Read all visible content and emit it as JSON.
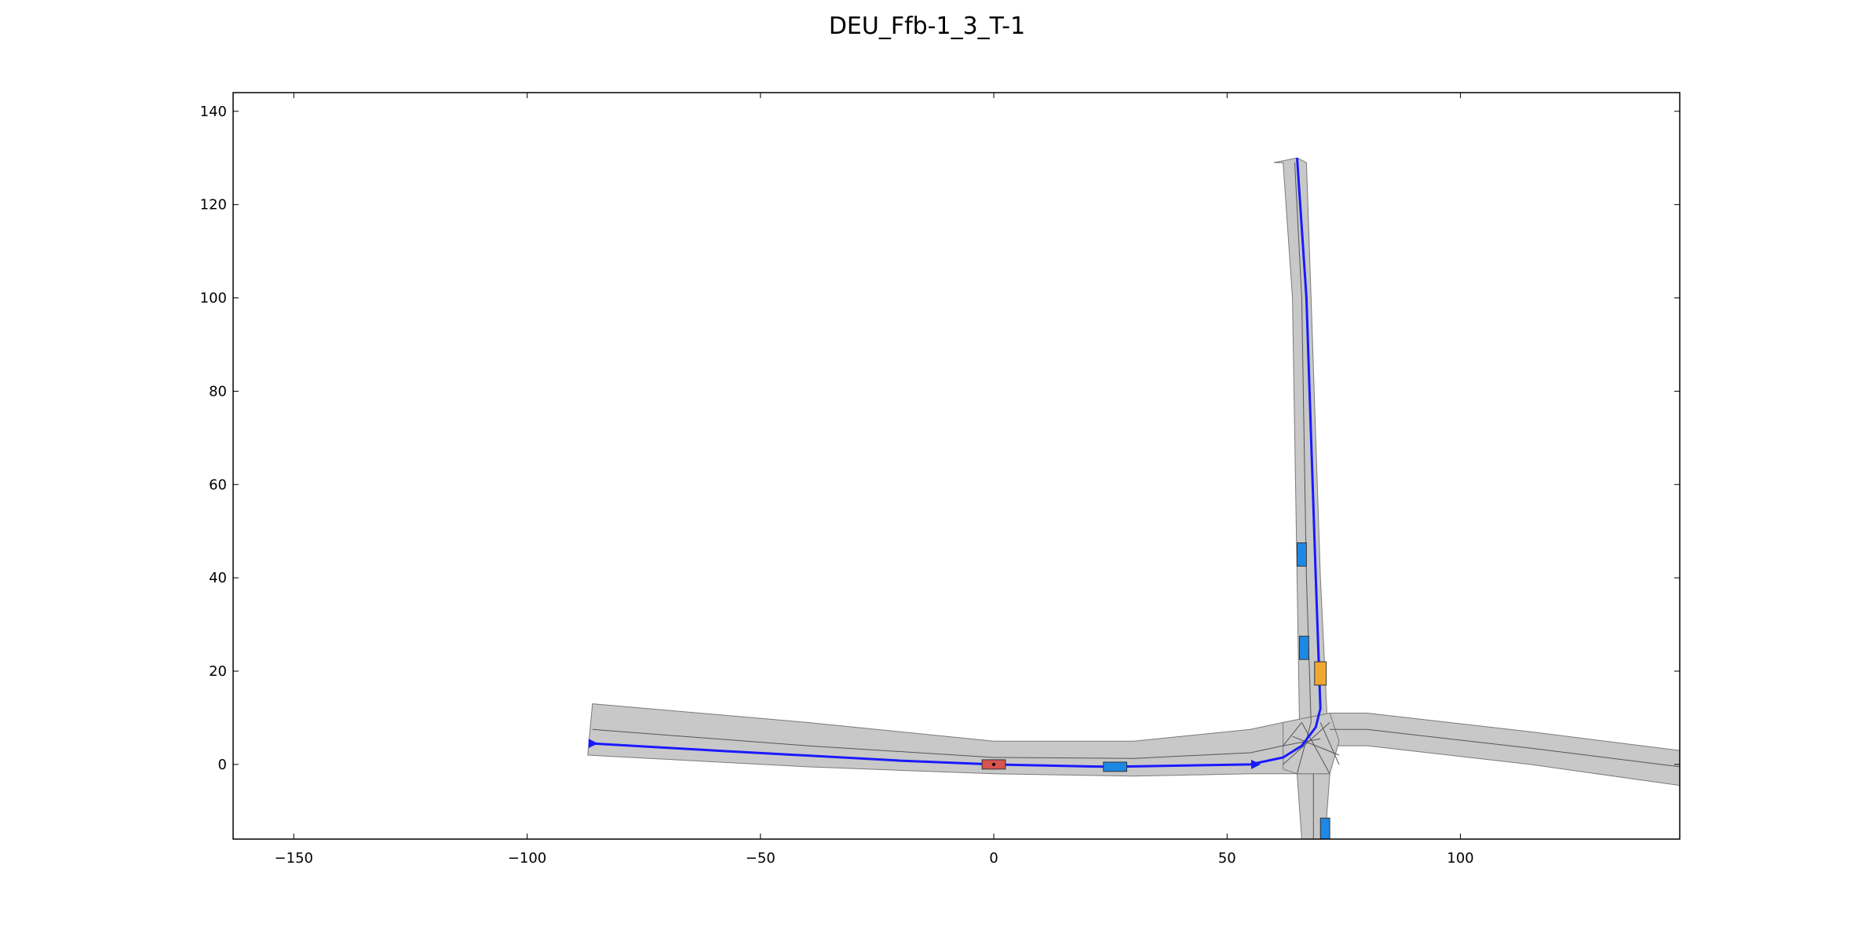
{
  "figure": {
    "title": "DEU_Ffb-1_3_T-1"
  },
  "chart_data": {
    "type": "map",
    "xlim": [
      -163,
      147
    ],
    "ylim": [
      -16,
      144
    ],
    "x_ticks": [
      -150,
      -100,
      -50,
      0,
      50,
      100
    ],
    "y_ticks": [
      0,
      20,
      40,
      60,
      80,
      100,
      120,
      140
    ],
    "x_tick_labels": [
      "−150",
      "−100",
      "−50",
      "0",
      "50",
      "100"
    ],
    "y_tick_labels": [
      "0",
      "20",
      "40",
      "60",
      "80",
      "100",
      "120",
      "140"
    ],
    "colors": {
      "road": "#c8c8c8",
      "road_edge": "#7a7a7a",
      "lane_line": "#555555",
      "route": "#1a1aff",
      "ego": "#d9534f",
      "obstacle": "#1e88e5",
      "goal": "#f0a830"
    },
    "roads": [
      {
        "name": "west-road",
        "polygon": [
          [
            -86,
            13
          ],
          [
            -40,
            9
          ],
          [
            0,
            5
          ],
          [
            30,
            5
          ],
          [
            55,
            7.5
          ],
          [
            62,
            9
          ],
          [
            72,
            9
          ],
          [
            72,
            -2
          ],
          [
            62,
            -2
          ],
          [
            55,
            -2
          ],
          [
            30,
            -2.5
          ],
          [
            0,
            -2
          ],
          [
            -40,
            -0.5
          ],
          [
            -87,
            2
          ]
        ]
      },
      {
        "name": "north-road",
        "polygon": [
          [
            60,
            129
          ],
          [
            65,
            130
          ],
          [
            67,
            129
          ],
          [
            68,
            100
          ],
          [
            70,
            40
          ],
          [
            71.5,
            9
          ],
          [
            65.5,
            9
          ],
          [
            65,
            40
          ],
          [
            64,
            100
          ],
          [
            62,
            129
          ]
        ]
      },
      {
        "name": "south-road",
        "polygon": [
          [
            65,
            -2
          ],
          [
            72,
            -2
          ],
          [
            71,
            -16
          ],
          [
            66,
            -16
          ]
        ]
      },
      {
        "name": "east-road",
        "polygon": [
          [
            72,
            11
          ],
          [
            80,
            11
          ],
          [
            115,
            7
          ],
          [
            147,
            3
          ],
          [
            147,
            -4.5
          ],
          [
            115,
            0
          ],
          [
            80,
            4
          ],
          [
            72,
            4
          ]
        ]
      },
      {
        "name": "junction",
        "polygon": [
          [
            62,
            9
          ],
          [
            72,
            11
          ],
          [
            74,
            5
          ],
          [
            72,
            -2
          ],
          [
            65,
            -2
          ],
          [
            62,
            -1
          ]
        ]
      }
    ],
    "lane_lines": [
      [
        [
          -86,
          7.5
        ],
        [
          -40,
          4
        ],
        [
          0,
          1.5
        ],
        [
          30,
          1.3
        ],
        [
          55,
          2.5
        ],
        [
          62,
          4
        ],
        [
          70,
          5.5
        ]
      ],
      [
        [
          64.5,
          129
        ],
        [
          66,
          100
        ],
        [
          67,
          40
        ],
        [
          68,
          9
        ]
      ],
      [
        [
          72,
          7.5
        ],
        [
          80,
          7.5
        ],
        [
          115,
          3.5
        ],
        [
          147,
          -0.5
        ]
      ],
      [
        [
          68.5,
          -2
        ],
        [
          68.5,
          -16
        ]
      ],
      [
        [
          62,
          4
        ],
        [
          66,
          9
        ]
      ],
      [
        [
          66,
          9
        ],
        [
          72,
          -2
        ]
      ],
      [
        [
          68,
          9
        ],
        [
          65,
          -2
        ]
      ],
      [
        [
          70,
          9
        ],
        [
          74,
          0
        ]
      ],
      [
        [
          62,
          0
        ],
        [
          72,
          9
        ]
      ],
      [
        [
          64,
          6
        ],
        [
          74,
          2
        ]
      ]
    ],
    "route": [
      [
        -86,
        4.5
      ],
      [
        -60,
        3
      ],
      [
        -20,
        0.8
      ],
      [
        0,
        0
      ],
      [
        25,
        -0.5
      ],
      [
        55,
        0
      ],
      [
        62,
        1.5
      ],
      [
        66,
        4
      ],
      [
        69,
        8
      ],
      [
        70,
        12
      ],
      [
        69,
        40
      ],
      [
        67,
        100
      ],
      [
        65,
        130
      ]
    ],
    "route_arrows": [
      [
        -86,
        4.5
      ],
      [
        56,
        0
      ]
    ],
    "vehicles": [
      {
        "name": "ego-vehicle",
        "role": "ego",
        "x": 0,
        "y": 0,
        "length": 5,
        "width": 2,
        "angle": 0
      },
      {
        "name": "obstacle-1",
        "role": "obstacle",
        "x": 26,
        "y": -0.5,
        "length": 5,
        "width": 2,
        "angle": 0
      },
      {
        "name": "obstacle-2",
        "role": "obstacle",
        "x": 66,
        "y": 45,
        "length": 5,
        "width": 2,
        "angle": 90
      },
      {
        "name": "obstacle-3",
        "role": "obstacle",
        "x": 66.5,
        "y": 25,
        "length": 5,
        "width": 2,
        "angle": 90
      },
      {
        "name": "obstacle-4",
        "role": "obstacle",
        "x": 71,
        "y": -14,
        "length": 5,
        "width": 2,
        "angle": 90
      },
      {
        "name": "goal-vehicle",
        "role": "goal",
        "x": 70,
        "y": 19.5,
        "length": 5,
        "width": 2.5,
        "angle": 90
      }
    ]
  }
}
